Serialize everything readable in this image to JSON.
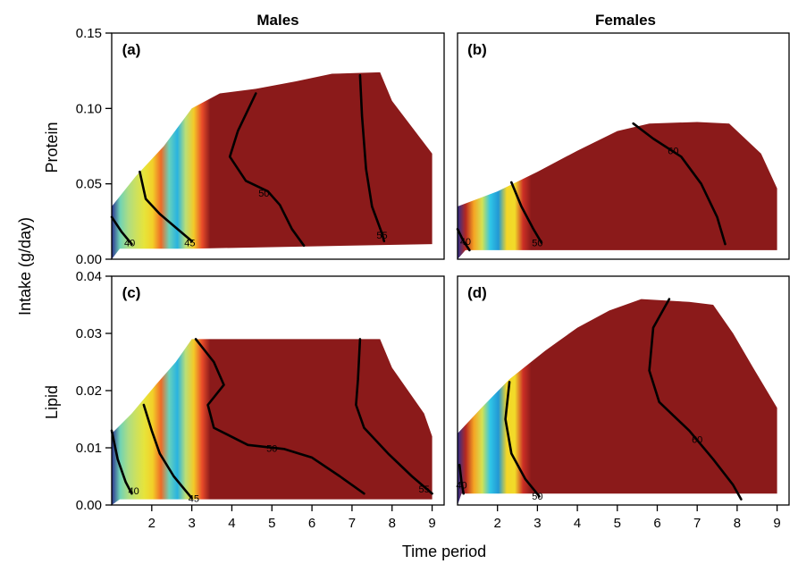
{
  "chart_data": {
    "type": "heatmap",
    "figure": {
      "column_titles": [
        "Males",
        "Females"
      ],
      "row_titles": [
        "Protein",
        "Lipid"
      ],
      "xlabel": "Time period",
      "ylabel": "Intake (g/day)",
      "x_ticks": [
        2,
        3,
        4,
        5,
        6,
        7,
        8,
        9
      ],
      "xlim": [
        1,
        9.3
      ],
      "colormap": [
        "#2b2f8f",
        "#1f8fd0",
        "#2fc7e8",
        "#b8df7a",
        "#f2e52a",
        "#f5a623",
        "#e8392a",
        "#8b1a1a"
      ]
    },
    "panels": [
      {
        "letter": "(a)",
        "sex": "Males",
        "nutrient": "Protein",
        "ylim": [
          0,
          0.15
        ],
        "y_ticks": [
          "0.00",
          "0.05",
          "0.10",
          "0.15"
        ],
        "value_range": [
          38,
          58
        ],
        "domain": [
          [
            1,
            0
          ],
          [
            1,
            0.035
          ],
          [
            1.6,
            0.055
          ],
          [
            2.3,
            0.075
          ],
          [
            3.0,
            0.1
          ],
          [
            3.7,
            0.11
          ],
          [
            4.6,
            0.113
          ],
          [
            5.6,
            0.118
          ],
          [
            6.5,
            0.123
          ],
          [
            7.7,
            0.124
          ],
          [
            8.0,
            0.105
          ],
          [
            9.0,
            0.07
          ],
          [
            9.0,
            0.01
          ],
          [
            3.0,
            0.007
          ],
          [
            1.2,
            0.007
          ]
        ],
        "surface": [
          [
            40,
            2.5
          ],
          [
            45,
            1.2
          ],
          [
            50,
            2.0
          ],
          [
            55,
            2.3
          ]
        ],
        "contours": [
          {
            "level": "40",
            "label_at": [
              1.45,
              0.011
            ],
            "points": [
              [
                1,
                0.028
              ],
              [
                1.25,
                0.018
              ],
              [
                1.5,
                0.01
              ]
            ]
          },
          {
            "level": "45",
            "label_at": [
              2.95,
              0.011
            ],
            "points": [
              [
                1.7,
                0.058
              ],
              [
                1.85,
                0.04
              ],
              [
                2.2,
                0.03
              ],
              [
                2.6,
                0.021
              ],
              [
                3.0,
                0.012
              ]
            ]
          },
          {
            "level": "50",
            "label_at": [
              4.8,
              0.044
            ],
            "points": [
              [
                4.6,
                0.11
              ],
              [
                4.15,
                0.085
              ],
              [
                3.95,
                0.068
              ],
              [
                4.35,
                0.052
              ],
              [
                4.9,
                0.045
              ],
              [
                5.2,
                0.036
              ],
              [
                5.5,
                0.02
              ],
              [
                5.8,
                0.009
              ]
            ]
          },
          {
            "level": "55",
            "label_at": [
              7.75,
              0.016
            ],
            "points": [
              [
                7.2,
                0.122
              ],
              [
                7.25,
                0.095
              ],
              [
                7.35,
                0.06
              ],
              [
                7.5,
                0.035
              ],
              [
                7.75,
                0.017
              ],
              [
                7.8,
                0.012
              ]
            ]
          }
        ]
      },
      {
        "letter": "(b)",
        "sex": "Females",
        "nutrient": "Protein",
        "ylim": [
          0,
          0.15
        ],
        "y_ticks": [],
        "value_range": [
          37,
          70
        ],
        "domain": [
          [
            1,
            0
          ],
          [
            1,
            0.035
          ],
          [
            2.0,
            0.045
          ],
          [
            3.0,
            0.058
          ],
          [
            4.0,
            0.072
          ],
          [
            5.0,
            0.085
          ],
          [
            5.8,
            0.09
          ],
          [
            7.0,
            0.091
          ],
          [
            7.8,
            0.09
          ],
          [
            8.6,
            0.07
          ],
          [
            9.0,
            0.047
          ],
          [
            9.0,
            0.006
          ],
          [
            1.2,
            0.006
          ]
        ],
        "surface": [
          [
            40,
            2.0
          ],
          [
            50,
            2.3
          ],
          [
            60,
            2.2
          ],
          [
            68,
            1.2
          ]
        ],
        "contours": [
          {
            "level": "40",
            "label_at": [
              1.2,
              0.012
            ],
            "points": [
              [
                1,
                0.02
              ],
              [
                1.15,
                0.012
              ],
              [
                1.3,
                0.006
              ]
            ]
          },
          {
            "level": "50",
            "label_at": [
              3.0,
              0.011
            ],
            "points": [
              [
                2.35,
                0.051
              ],
              [
                2.6,
                0.035
              ],
              [
                2.9,
                0.02
              ],
              [
                3.1,
                0.011
              ]
            ]
          },
          {
            "level": "60",
            "label_at": [
              6.4,
              0.072
            ],
            "points": [
              [
                5.4,
                0.09
              ],
              [
                5.9,
                0.08
              ],
              [
                6.6,
                0.068
              ],
              [
                7.1,
                0.05
              ],
              [
                7.5,
                0.028
              ],
              [
                7.7,
                0.01
              ]
            ]
          }
        ]
      },
      {
        "letter": "(c)",
        "sex": "Males",
        "nutrient": "Lipid",
        "ylim": [
          0,
          0.04
        ],
        "y_ticks": [
          "0.00",
          "0.01",
          "0.02",
          "0.03",
          "0.04"
        ],
        "value_range": [
          38,
          58
        ],
        "domain": [
          [
            1,
            0
          ],
          [
            1,
            0.0125
          ],
          [
            1.5,
            0.016
          ],
          [
            2.1,
            0.021
          ],
          [
            2.6,
            0.025
          ],
          [
            3.0,
            0.029
          ],
          [
            7.7,
            0.029
          ],
          [
            8.0,
            0.024
          ],
          [
            8.8,
            0.016
          ],
          [
            9.0,
            0.012
          ],
          [
            9.0,
            0.001
          ],
          [
            1.2,
            0.001
          ]
        ],
        "surface": [
          [
            40,
            2.5
          ],
          [
            45,
            1.2
          ],
          [
            50,
            2.0
          ],
          [
            55,
            2.3
          ]
        ],
        "contours": [
          {
            "level": "40",
            "label_at": [
              1.55,
              0.0025
            ],
            "points": [
              [
                1,
                0.013
              ],
              [
                1.15,
                0.008
              ],
              [
                1.35,
                0.004
              ],
              [
                1.5,
                0.002
              ]
            ]
          },
          {
            "level": "45",
            "label_at": [
              3.05,
              0.0012
            ],
            "points": [
              [
                1.8,
                0.0175
              ],
              [
                2.0,
                0.013
              ],
              [
                2.2,
                0.009
              ],
              [
                2.55,
                0.005
              ],
              [
                3.0,
                0.0012
              ]
            ]
          },
          {
            "level": "50",
            "label_at": [
              5.0,
              0.0099
            ],
            "points": [
              [
                3.1,
                0.029
              ],
              [
                3.55,
                0.025
              ],
              [
                3.8,
                0.021
              ],
              [
                3.4,
                0.0175
              ],
              [
                3.55,
                0.0135
              ],
              [
                4.4,
                0.0105
              ],
              [
                5.3,
                0.0098
              ],
              [
                6.0,
                0.0083
              ],
              [
                6.7,
                0.005
              ],
              [
                7.3,
                0.002
              ]
            ]
          },
          {
            "level": "55",
            "label_at": [
              8.8,
              0.0028
            ],
            "points": [
              [
                7.2,
                0.029
              ],
              [
                7.15,
                0.022
              ],
              [
                7.1,
                0.0175
              ],
              [
                7.3,
                0.0135
              ],
              [
                7.9,
                0.009
              ],
              [
                8.5,
                0.005
              ],
              [
                9.0,
                0.002
              ]
            ]
          }
        ]
      },
      {
        "letter": "(d)",
        "sex": "Females",
        "nutrient": "Lipid",
        "ylim": [
          0,
          0.04
        ],
        "y_ticks": [],
        "value_range": [
          37,
          70
        ],
        "domain": [
          [
            1,
            0
          ],
          [
            1,
            0.0125
          ],
          [
            1.6,
            0.017
          ],
          [
            2.3,
            0.022
          ],
          [
            3.2,
            0.027
          ],
          [
            4.0,
            0.031
          ],
          [
            4.8,
            0.034
          ],
          [
            5.6,
            0.036
          ],
          [
            6.8,
            0.0355
          ],
          [
            7.4,
            0.035
          ],
          [
            7.9,
            0.03
          ],
          [
            8.4,
            0.024
          ],
          [
            9.0,
            0.017
          ],
          [
            9.0,
            0.002
          ],
          [
            1.1,
            0.002
          ]
        ],
        "surface": [
          [
            40,
            2.0
          ],
          [
            50,
            2.3
          ],
          [
            60,
            2.2
          ],
          [
            68,
            1.2
          ]
        ],
        "contours": [
          {
            "level": "40",
            "label_at": [
              1.1,
              0.0035
            ],
            "points": [
              [
                1.05,
                0.007
              ],
              [
                1.1,
                0.004
              ],
              [
                1.15,
                0.002
              ]
            ]
          },
          {
            "level": "50",
            "label_at": [
              3.0,
              0.0016
            ],
            "points": [
              [
                2.3,
                0.0215
              ],
              [
                2.2,
                0.015
              ],
              [
                2.35,
                0.009
              ],
              [
                2.7,
                0.0045
              ],
              [
                3.05,
                0.0015
              ]
            ]
          },
          {
            "level": "60",
            "label_at": [
              7.0,
              0.0115
            ],
            "points": [
              [
                6.3,
                0.036
              ],
              [
                5.9,
                0.031
              ],
              [
                5.8,
                0.0235
              ],
              [
                6.05,
                0.018
              ],
              [
                6.8,
                0.013
              ],
              [
                7.4,
                0.008
              ],
              [
                7.9,
                0.0035
              ],
              [
                8.1,
                0.001
              ]
            ]
          }
        ]
      }
    ]
  }
}
